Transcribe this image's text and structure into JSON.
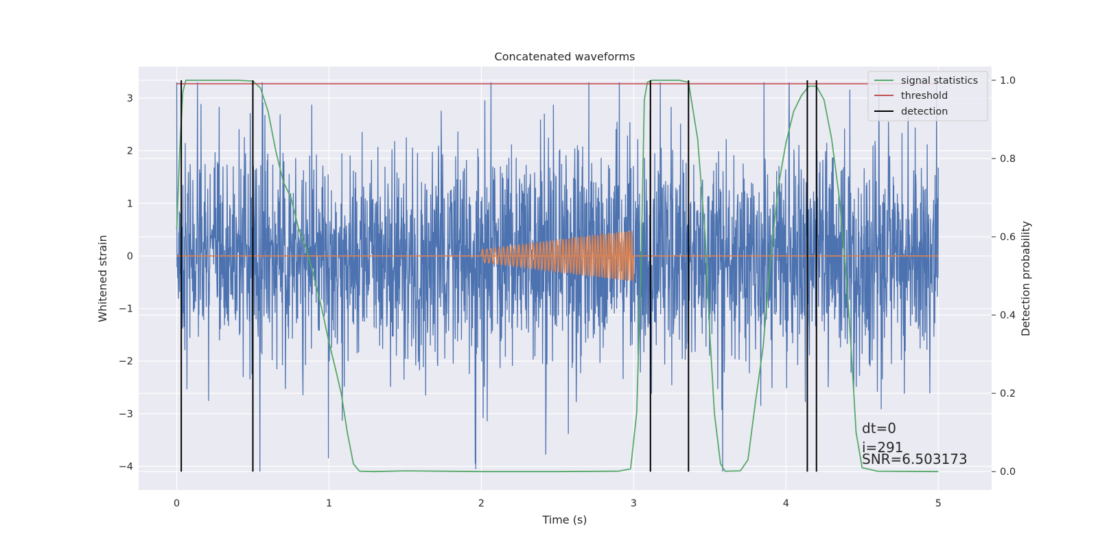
{
  "chart_data": {
    "type": "line",
    "title": "Concatenated waveforms",
    "xlabel": "Time (s)",
    "ylabel": "Whitened strain",
    "ylabel_right": "Detection probability",
    "xlim": [
      -0.25,
      5.35
    ],
    "ylim": [
      -4.45,
      3.6
    ],
    "ylim_right": [
      -0.047,
      1.035
    ],
    "x_ticks": [
      "0",
      "1",
      "2",
      "3",
      "4",
      "5"
    ],
    "y_ticks": [
      "3",
      "2",
      "1",
      "0",
      "−1",
      "−2",
      "−3",
      "−4"
    ],
    "y_right_ticks": [
      "1.0",
      "0.8",
      "0.6",
      "0.4",
      "0.2",
      "0.0"
    ],
    "grid": true,
    "legend_position": "top-right",
    "series": [
      {
        "name": "",
        "axis": "left",
        "kind": "noise",
        "x_range": [
          0,
          5
        ],
        "amplitude_range": [
          -4.1,
          3.3
        ],
        "color": "#4c72b0"
      },
      {
        "name": "",
        "axis": "left",
        "kind": "chirp",
        "x_range": [
          2,
          3
        ],
        "amplitude_start": 0.12,
        "amplitude_end": 0.48,
        "baseline_x_range": [
          0,
          5
        ],
        "color": "#dd8452"
      },
      {
        "name": "signal statistics",
        "axis": "right",
        "color": "#55a868",
        "x": [
          0,
          0.02,
          0.04,
          0.06,
          0.1,
          0.2,
          0.4,
          0.5,
          0.55,
          0.6,
          0.65,
          0.7,
          0.75,
          0.8,
          0.85,
          0.9,
          0.95,
          1.0,
          1.05,
          1.08,
          1.12,
          1.16,
          1.2,
          1.3,
          1.5,
          2.0,
          2.5,
          2.9,
          2.98,
          3.02,
          3.05,
          3.07,
          3.09,
          3.12,
          3.2,
          3.3,
          3.36,
          3.42,
          3.47,
          3.5,
          3.53,
          3.57,
          3.6,
          3.7,
          3.75,
          3.8,
          3.85,
          3.9,
          3.95,
          4.0,
          4.05,
          4.1,
          4.15,
          4.2,
          4.25,
          4.3,
          4.35,
          4.4,
          4.43,
          4.46,
          4.5,
          4.6,
          5.0
        ],
        "y": [
          0.62,
          0.82,
          0.97,
          1.0,
          1.0,
          1.0,
          1.0,
          0.998,
          0.98,
          0.92,
          0.82,
          0.74,
          0.7,
          0.62,
          0.57,
          0.5,
          0.42,
          0.33,
          0.25,
          0.2,
          0.1,
          0.02,
          0.001,
          0.0,
          0.002,
          0.0,
          0.0,
          0.001,
          0.007,
          0.15,
          0.55,
          0.95,
          0.995,
          1.0,
          1.0,
          1.0,
          0.995,
          0.85,
          0.6,
          0.35,
          0.15,
          0.02,
          0.001,
          0.002,
          0.03,
          0.18,
          0.32,
          0.55,
          0.73,
          0.84,
          0.92,
          0.96,
          0.985,
          0.985,
          0.95,
          0.85,
          0.7,
          0.48,
          0.3,
          0.1,
          0.01,
          0.001,
          0.0
        ]
      },
      {
        "name": "threshold",
        "axis": "right",
        "color": "#c44e52",
        "x": [
          0,
          5
        ],
        "y": [
          0.991,
          0.991
        ]
      },
      {
        "name": "detection",
        "axis": "right",
        "color": "#000000",
        "kind": "vlines",
        "x": [
          0.03,
          0.5,
          3.11,
          3.36,
          4.14,
          4.2
        ],
        "y_range": [
          0.0,
          1.0
        ]
      }
    ],
    "annotations": [
      "dt=0",
      "i=291",
      "SNR=6.503173"
    ]
  }
}
